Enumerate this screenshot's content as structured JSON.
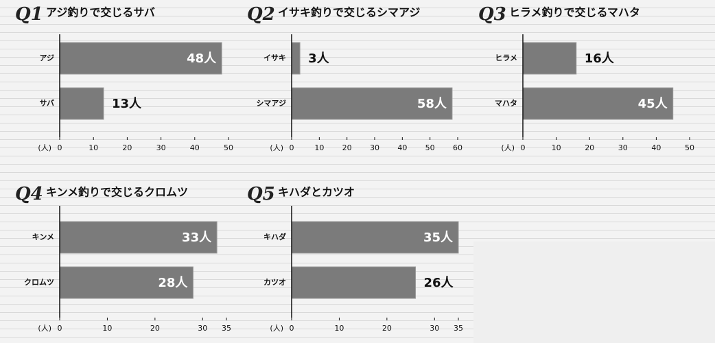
{
  "chart_data": [
    {
      "type": "bar",
      "number": "Q1",
      "title": "アジ釣りで交じるサバ",
      "categories": [
        "アジ",
        "サバ"
      ],
      "values": [
        48,
        13
      ],
      "value_labels": [
        "48人",
        "13人"
      ],
      "xlabel": "(人)",
      "xlim": [
        0,
        50
      ],
      "xticks": [
        0,
        10,
        20,
        30,
        40,
        50
      ],
      "color": "#7b7b7b"
    },
    {
      "type": "bar",
      "number": "Q2",
      "title": "イサキ釣りで交じるシマアジ",
      "categories": [
        "イサキ",
        "シマアジ"
      ],
      "values": [
        3,
        58
      ],
      "value_labels": [
        "3人",
        "58人"
      ],
      "xlabel": "(人)",
      "xlim": [
        0,
        60
      ],
      "xticks": [
        0,
        10,
        20,
        30,
        40,
        50,
        60
      ],
      "color": "#7b7b7b"
    },
    {
      "type": "bar",
      "number": "Q3",
      "title": "ヒラメ釣りで交じるマハタ",
      "categories": [
        "ヒラメ",
        "マハタ"
      ],
      "values": [
        16,
        45
      ],
      "value_labels": [
        "16人",
        "45人"
      ],
      "xlabel": "(人)",
      "xlim": [
        0,
        50
      ],
      "xticks": [
        0,
        10,
        20,
        30,
        40,
        50
      ],
      "color": "#7b7b7b"
    },
    {
      "type": "bar",
      "number": "Q4",
      "title": "キンメ釣りで交じるクロムツ",
      "categories": [
        "キンメ",
        "クロムツ"
      ],
      "values": [
        33,
        28
      ],
      "value_labels": [
        "33人",
        "28人"
      ],
      "xlabel": "(人)",
      "xlim": [
        0,
        35
      ],
      "xticks": [
        0,
        10,
        20,
        30,
        35
      ],
      "color": "#7b7b7b"
    },
    {
      "type": "bar",
      "number": "Q5",
      "title": "キハダとカツオ",
      "categories": [
        "キハダ",
        "カツオ"
      ],
      "values": [
        35,
        26
      ],
      "value_labels": [
        "35人",
        "26人"
      ],
      "xlabel": "(人)",
      "xlim": [
        0,
        35
      ],
      "xticks": [
        0,
        10,
        20,
        30,
        35
      ],
      "color": "#7b7b7b"
    }
  ]
}
